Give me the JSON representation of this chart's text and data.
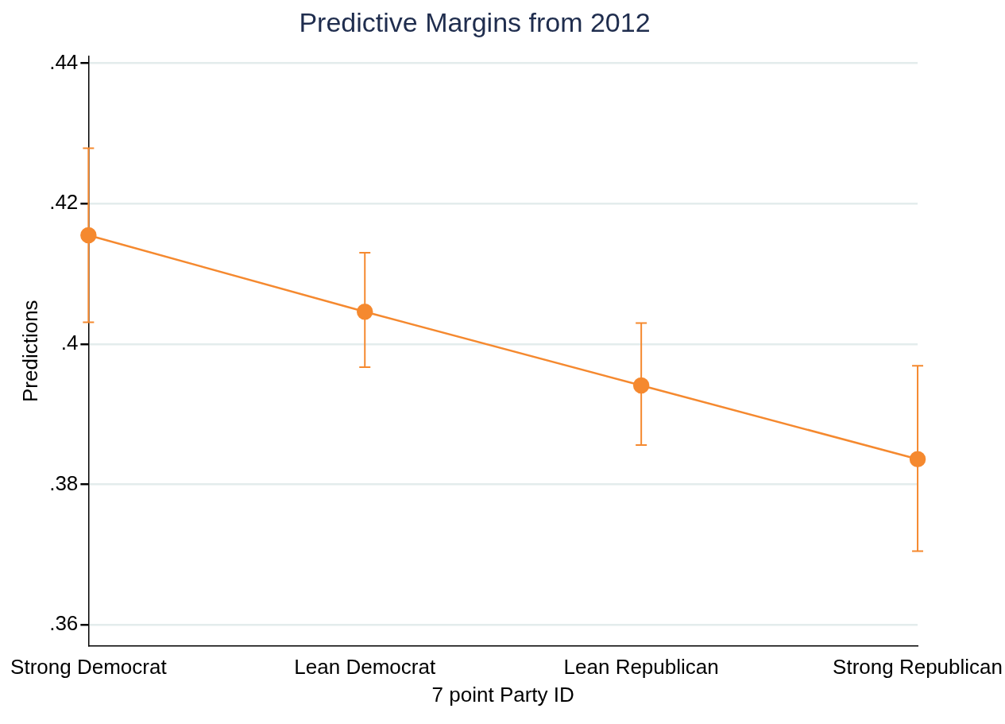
{
  "chart_data": {
    "type": "line",
    "title": "Predictive Margins from 2012",
    "xlabel": "7 point Party ID",
    "ylabel": "Predictions",
    "categories": [
      "Strong Democrat",
      "Lean Democrat",
      "Lean Republican",
      "Strong Republican"
    ],
    "series": [
      {
        "color": "#f5892f",
        "values": [
          0.4155,
          0.4046,
          0.3941,
          0.3836
        ],
        "errors": [
          [
            0.4031,
            0.4279
          ],
          [
            0.3967,
            0.413
          ],
          [
            0.3856,
            0.403
          ],
          [
            0.3705,
            0.3969
          ]
        ]
      }
    ],
    "ylim": [
      0.357,
      0.441
    ],
    "yticks": [
      {
        "value": 0.36,
        "label": ".36"
      },
      {
        "value": 0.38,
        "label": ".38"
      },
      {
        "value": 0.4,
        "label": ".4"
      },
      {
        "value": 0.42,
        "label": ".42"
      },
      {
        "value": 0.44,
        "label": ".44"
      }
    ],
    "grid": "y",
    "legend": false,
    "marker": "circle",
    "line_style": "solid"
  }
}
